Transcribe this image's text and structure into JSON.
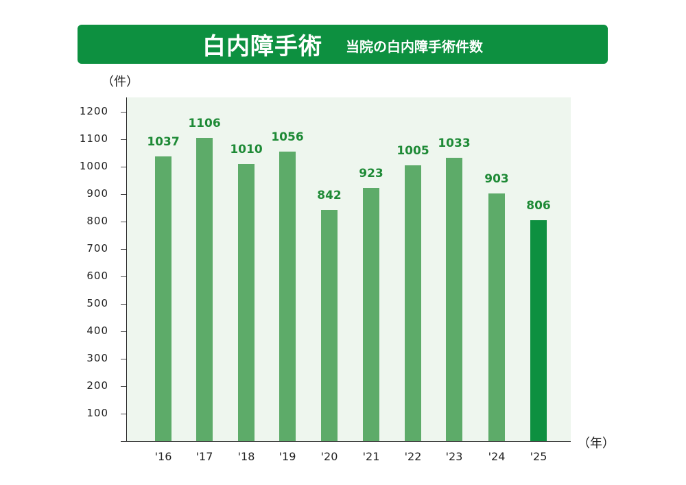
{
  "header": {
    "title": "白内障手術",
    "subtitle": "当院の白内障手術件数"
  },
  "axes": {
    "y_unit": "（件）",
    "x_unit": "（年）"
  },
  "colors": {
    "banner": "#0d9040",
    "bar": "#5dab69",
    "bar_highlight": "#0d9040",
    "value_label": "#1e8a36",
    "plot_background": "#eef6ee"
  },
  "chart_data": {
    "type": "bar",
    "title": "白内障手術 当院の白内障手術件数",
    "xlabel": "（年）",
    "ylabel": "（件）",
    "categories": [
      "'16",
      "'17",
      "'18",
      "'19",
      "'20",
      "'21",
      "'22",
      "'23",
      "'24",
      "'25"
    ],
    "values": [
      1037,
      1106,
      1010,
      1056,
      842,
      923,
      1005,
      1033,
      903,
      806
    ],
    "value_labels": [
      "1037",
      "1106",
      "1010",
      "1056",
      "842",
      "923",
      "1005",
      "1033",
      "903",
      "806"
    ],
    "highlighted_index": 9,
    "yticks": [
      100,
      200,
      300,
      400,
      500,
      600,
      700,
      800,
      900,
      1000,
      1100,
      1200
    ],
    "ytick_labels": [
      "100",
      "200",
      "300",
      "400",
      "500",
      "600",
      "700",
      "800",
      "900",
      "1000",
      "1100",
      "1200"
    ],
    "ylim": [
      0,
      1250
    ],
    "grid": false,
    "legend": null
  }
}
